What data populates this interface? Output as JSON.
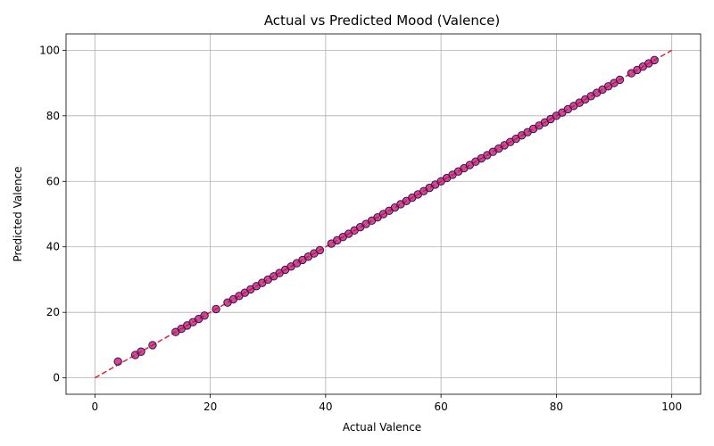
{
  "chart_data": {
    "type": "scatter",
    "title": "Actual vs Predicted Mood (Valence)",
    "xlabel": "Actual Valence",
    "ylabel": "Predicted Valence",
    "xlim": [
      -5,
      105
    ],
    "ylim": [
      -5,
      105
    ],
    "xticks": [
      0,
      20,
      40,
      60,
      80,
      100
    ],
    "yticks": [
      0,
      20,
      40,
      60,
      80,
      100
    ],
    "grid": true,
    "reference_line": {
      "x": [
        0,
        100
      ],
      "y": [
        0,
        100
      ],
      "style": "dashed",
      "color": "#e8202a"
    },
    "point_fill": "#c01060",
    "point_edge": "#301060",
    "series": [
      {
        "x": [
          4,
          7,
          8,
          10,
          14,
          15,
          16,
          17,
          18,
          19,
          21,
          23,
          24,
          25,
          26,
          27,
          28,
          29,
          30,
          31,
          32,
          33,
          34,
          35,
          36,
          37,
          38,
          39,
          41,
          42,
          43,
          44,
          45,
          46,
          47,
          48,
          49,
          50,
          51,
          52,
          53,
          54,
          55,
          56,
          57,
          58,
          59,
          60,
          61,
          62,
          63,
          64,
          65,
          66,
          67,
          68,
          69,
          70,
          71,
          72,
          73,
          74,
          75,
          76,
          77,
          78,
          79,
          80,
          81,
          82,
          83,
          84,
          85,
          86,
          87,
          88,
          89,
          90,
          91,
          93,
          94,
          95,
          96,
          97
        ],
        "y": [
          5,
          7,
          8,
          10,
          14,
          15,
          16,
          17,
          18,
          19,
          21,
          23,
          24,
          25,
          26,
          27,
          28,
          29,
          30,
          31,
          32,
          33,
          34,
          35,
          36,
          37,
          38,
          39,
          41,
          42,
          43,
          44,
          45,
          46,
          47,
          48,
          49,
          50,
          51,
          52,
          53,
          54,
          55,
          56,
          57,
          58,
          59,
          60,
          61,
          62,
          63,
          64,
          65,
          66,
          67,
          68,
          69,
          70,
          71,
          72,
          73,
          74,
          75,
          76,
          77,
          78,
          79,
          80,
          81,
          82,
          83,
          84,
          85,
          86,
          87,
          88,
          89,
          90,
          91,
          93,
          94,
          95,
          96,
          97
        ]
      }
    ]
  }
}
